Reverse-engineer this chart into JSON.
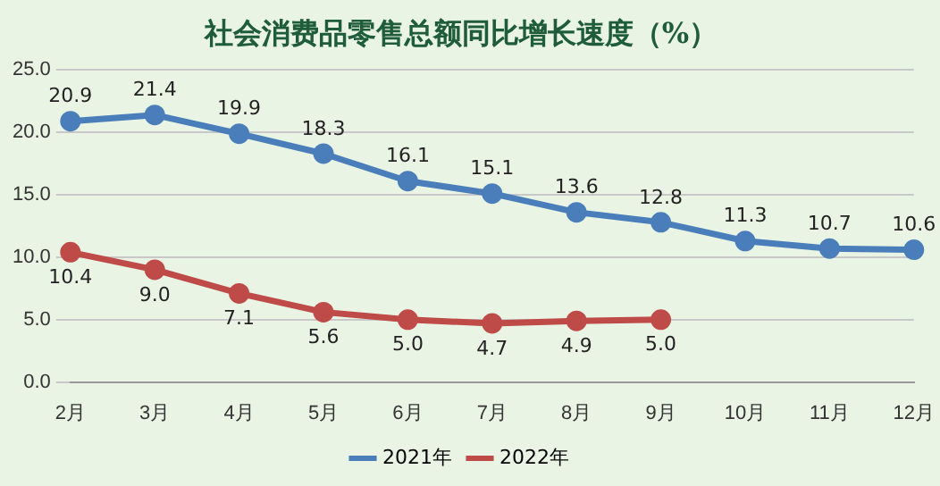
{
  "chart_data": {
    "type": "line",
    "title": "社会消费品零售总额同比增长速度（%）",
    "categories": [
      "2月",
      "3月",
      "4月",
      "5月",
      "6月",
      "7月",
      "8月",
      "9月",
      "10月",
      "11月",
      "12月"
    ],
    "series": [
      {
        "name": "2021年",
        "color": "#4a7ebb",
        "values": [
          20.9,
          21.4,
          19.9,
          18.3,
          16.1,
          15.1,
          13.6,
          12.8,
          11.3,
          10.7,
          10.6
        ],
        "value_labels": [
          "20.9",
          "21.4",
          "19.9",
          "18.3",
          "16.1",
          "15.1",
          "13.6",
          "12.8",
          "11.3",
          "10.7",
          "10.6"
        ]
      },
      {
        "name": "2022年",
        "color": "#be4b48",
        "values": [
          10.4,
          9.0,
          7.1,
          5.6,
          5.0,
          4.7,
          4.9,
          5.0,
          null,
          null,
          null
        ],
        "value_labels": [
          "10.4",
          "9.0",
          "7.1",
          "5.6",
          "5.0",
          "4.7",
          "4.9",
          "5.0",
          null,
          null,
          null
        ]
      }
    ],
    "ylim": [
      0,
      25
    ],
    "yticks": [
      {
        "value": 0,
        "label": "0.0"
      },
      {
        "value": 5,
        "label": "5.0"
      },
      {
        "value": 10,
        "label": "10.0"
      },
      {
        "value": 15,
        "label": "15.0"
      },
      {
        "value": 20,
        "label": "20.0"
      },
      {
        "value": 25,
        "label": "25.0"
      }
    ],
    "grid": "y",
    "legend": "bottom",
    "marker": "circle",
    "line_style": "solid"
  }
}
